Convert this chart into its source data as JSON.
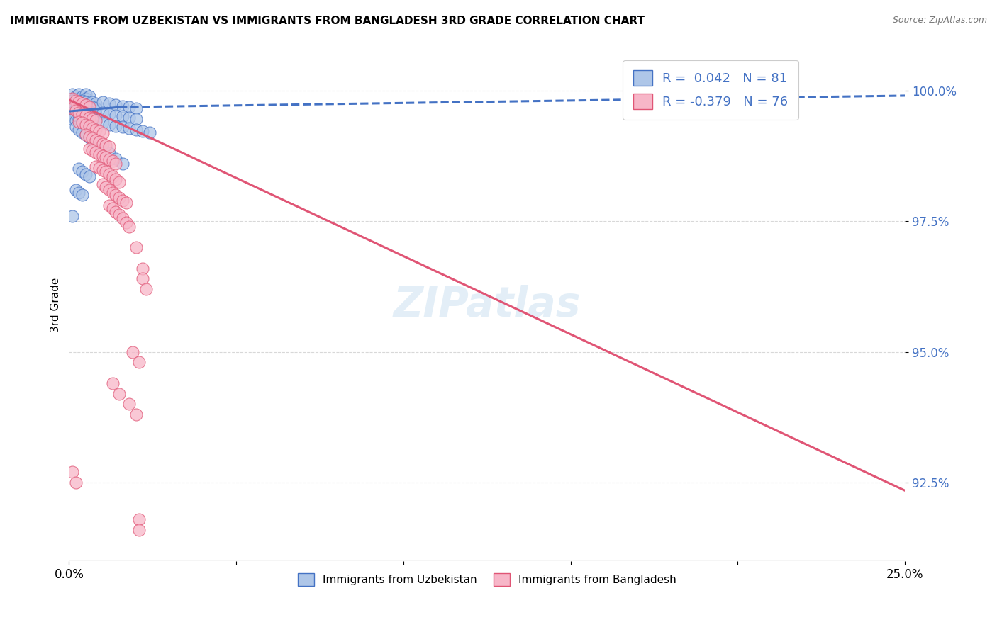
{
  "title": "IMMIGRANTS FROM UZBEKISTAN VS IMMIGRANTS FROM BANGLADESH 3RD GRADE CORRELATION CHART",
  "source": "Source: ZipAtlas.com",
  "ylabel": "3rd Grade",
  "ytick_labels": [
    "92.5%",
    "95.0%",
    "97.5%",
    "100.0%"
  ],
  "ytick_values": [
    0.925,
    0.95,
    0.975,
    1.0
  ],
  "xmin": 0.0,
  "xmax": 0.25,
  "ymin": 0.91,
  "ymax": 1.008,
  "uzbekistan_color": "#aec6e8",
  "bangladesh_color": "#f7b6c8",
  "line_uzbekistan_color": "#4472c4",
  "line_bangladesh_color": "#e05575",
  "scatter_uzbekistan": [
    [
      0.001,
      0.9992
    ],
    [
      0.002,
      0.9988
    ],
    [
      0.003,
      0.9985
    ],
    [
      0.003,
      0.9992
    ],
    [
      0.004,
      0.9988
    ],
    [
      0.005,
      0.9992
    ],
    [
      0.005,
      0.9985
    ],
    [
      0.006,
      0.9988
    ],
    [
      0.001,
      0.998
    ],
    [
      0.002,
      0.9975
    ],
    [
      0.003,
      0.9978
    ],
    [
      0.004,
      0.998
    ],
    [
      0.005,
      0.9978
    ],
    [
      0.006,
      0.9975
    ],
    [
      0.007,
      0.9978
    ],
    [
      0.008,
      0.9975
    ],
    [
      0.001,
      0.9968
    ],
    [
      0.002,
      0.9965
    ],
    [
      0.003,
      0.9968
    ],
    [
      0.004,
      0.9965
    ],
    [
      0.005,
      0.9968
    ],
    [
      0.006,
      0.9965
    ],
    [
      0.007,
      0.9968
    ],
    [
      0.008,
      0.9965
    ],
    [
      0.001,
      0.9958
    ],
    [
      0.002,
      0.9955
    ],
    [
      0.003,
      0.9958
    ],
    [
      0.004,
      0.9955
    ],
    [
      0.005,
      0.9958
    ],
    [
      0.006,
      0.9955
    ],
    [
      0.007,
      0.9958
    ],
    [
      0.008,
      0.9955
    ],
    [
      0.001,
      0.9945
    ],
    [
      0.002,
      0.9942
    ],
    [
      0.003,
      0.9945
    ],
    [
      0.004,
      0.9942
    ],
    [
      0.005,
      0.9945
    ],
    [
      0.006,
      0.9942
    ],
    [
      0.007,
      0.9945
    ],
    [
      0.008,
      0.9942
    ],
    [
      0.01,
      0.9978
    ],
    [
      0.012,
      0.9975
    ],
    [
      0.014,
      0.9972
    ],
    [
      0.016,
      0.997
    ],
    [
      0.018,
      0.9968
    ],
    [
      0.02,
      0.9965
    ],
    [
      0.01,
      0.9958
    ],
    [
      0.012,
      0.9955
    ],
    [
      0.014,
      0.9952
    ],
    [
      0.016,
      0.995
    ],
    [
      0.018,
      0.9948
    ],
    [
      0.02,
      0.9945
    ],
    [
      0.01,
      0.9938
    ],
    [
      0.012,
      0.9935
    ],
    [
      0.014,
      0.9932
    ],
    [
      0.016,
      0.993
    ],
    [
      0.018,
      0.9928
    ],
    [
      0.02,
      0.9925
    ],
    [
      0.022,
      0.9922
    ],
    [
      0.024,
      0.992
    ],
    [
      0.002,
      0.993
    ],
    [
      0.003,
      0.9925
    ],
    [
      0.004,
      0.992
    ],
    [
      0.005,
      0.9915
    ],
    [
      0.006,
      0.991
    ],
    [
      0.007,
      0.9905
    ],
    [
      0.008,
      0.99
    ],
    [
      0.009,
      0.9895
    ],
    [
      0.01,
      0.989
    ],
    [
      0.012,
      0.988
    ],
    [
      0.014,
      0.987
    ],
    [
      0.016,
      0.986
    ],
    [
      0.003,
      0.985
    ],
    [
      0.004,
      0.9845
    ],
    [
      0.005,
      0.984
    ],
    [
      0.006,
      0.9835
    ],
    [
      0.002,
      0.981
    ],
    [
      0.003,
      0.9805
    ],
    [
      0.004,
      0.98
    ],
    [
      0.001,
      0.976
    ]
  ],
  "scatter_bangladesh": [
    [
      0.001,
      0.9985
    ],
    [
      0.002,
      0.998
    ],
    [
      0.003,
      0.9978
    ],
    [
      0.004,
      0.9975
    ],
    [
      0.005,
      0.9972
    ],
    [
      0.006,
      0.9968
    ],
    [
      0.001,
      0.9965
    ],
    [
      0.002,
      0.9962
    ],
    [
      0.003,
      0.9958
    ],
    [
      0.004,
      0.9955
    ],
    [
      0.005,
      0.9952
    ],
    [
      0.006,
      0.9948
    ],
    [
      0.007,
      0.9945
    ],
    [
      0.008,
      0.9942
    ],
    [
      0.003,
      0.994
    ],
    [
      0.004,
      0.9938
    ],
    [
      0.005,
      0.9935
    ],
    [
      0.006,
      0.9932
    ],
    [
      0.007,
      0.9928
    ],
    [
      0.008,
      0.9925
    ],
    [
      0.009,
      0.9922
    ],
    [
      0.01,
      0.9918
    ],
    [
      0.005,
      0.9915
    ],
    [
      0.006,
      0.9912
    ],
    [
      0.007,
      0.9908
    ],
    [
      0.008,
      0.9905
    ],
    [
      0.009,
      0.9902
    ],
    [
      0.01,
      0.9898
    ],
    [
      0.011,
      0.9895
    ],
    [
      0.012,
      0.9892
    ],
    [
      0.006,
      0.9888
    ],
    [
      0.007,
      0.9885
    ],
    [
      0.008,
      0.9882
    ],
    [
      0.009,
      0.9878
    ],
    [
      0.01,
      0.9875
    ],
    [
      0.011,
      0.9872
    ],
    [
      0.012,
      0.9868
    ],
    [
      0.013,
      0.9865
    ],
    [
      0.014,
      0.986
    ],
    [
      0.008,
      0.9855
    ],
    [
      0.009,
      0.9852
    ],
    [
      0.01,
      0.9848
    ],
    [
      0.011,
      0.9845
    ],
    [
      0.012,
      0.984
    ],
    [
      0.013,
      0.9835
    ],
    [
      0.014,
      0.983
    ],
    [
      0.015,
      0.9825
    ],
    [
      0.01,
      0.982
    ],
    [
      0.011,
      0.9815
    ],
    [
      0.012,
      0.981
    ],
    [
      0.013,
      0.9805
    ],
    [
      0.014,
      0.98
    ],
    [
      0.015,
      0.9795
    ],
    [
      0.016,
      0.979
    ],
    [
      0.017,
      0.9785
    ],
    [
      0.012,
      0.978
    ],
    [
      0.013,
      0.9775
    ],
    [
      0.014,
      0.9768
    ],
    [
      0.015,
      0.9762
    ],
    [
      0.016,
      0.9755
    ],
    [
      0.017,
      0.9748
    ],
    [
      0.018,
      0.974
    ],
    [
      0.02,
      0.97
    ],
    [
      0.022,
      0.966
    ],
    [
      0.022,
      0.964
    ],
    [
      0.023,
      0.962
    ],
    [
      0.019,
      0.95
    ],
    [
      0.021,
      0.948
    ],
    [
      0.013,
      0.944
    ],
    [
      0.015,
      0.942
    ],
    [
      0.018,
      0.94
    ],
    [
      0.02,
      0.938
    ],
    [
      0.001,
      0.927
    ],
    [
      0.002,
      0.925
    ],
    [
      0.021,
      0.918
    ],
    [
      0.021,
      0.916
    ]
  ],
  "trendline_uzbekistan_solid": [
    [
      0.0,
      0.996
    ],
    [
      0.015,
      0.9968
    ]
  ],
  "trendline_uzbekistan_dashed": [
    [
      0.015,
      0.9968
    ],
    [
      0.25,
      0.999
    ]
  ],
  "trendline_bangladesh": [
    [
      0.0,
      0.9982
    ],
    [
      0.25,
      0.9235
    ]
  ]
}
